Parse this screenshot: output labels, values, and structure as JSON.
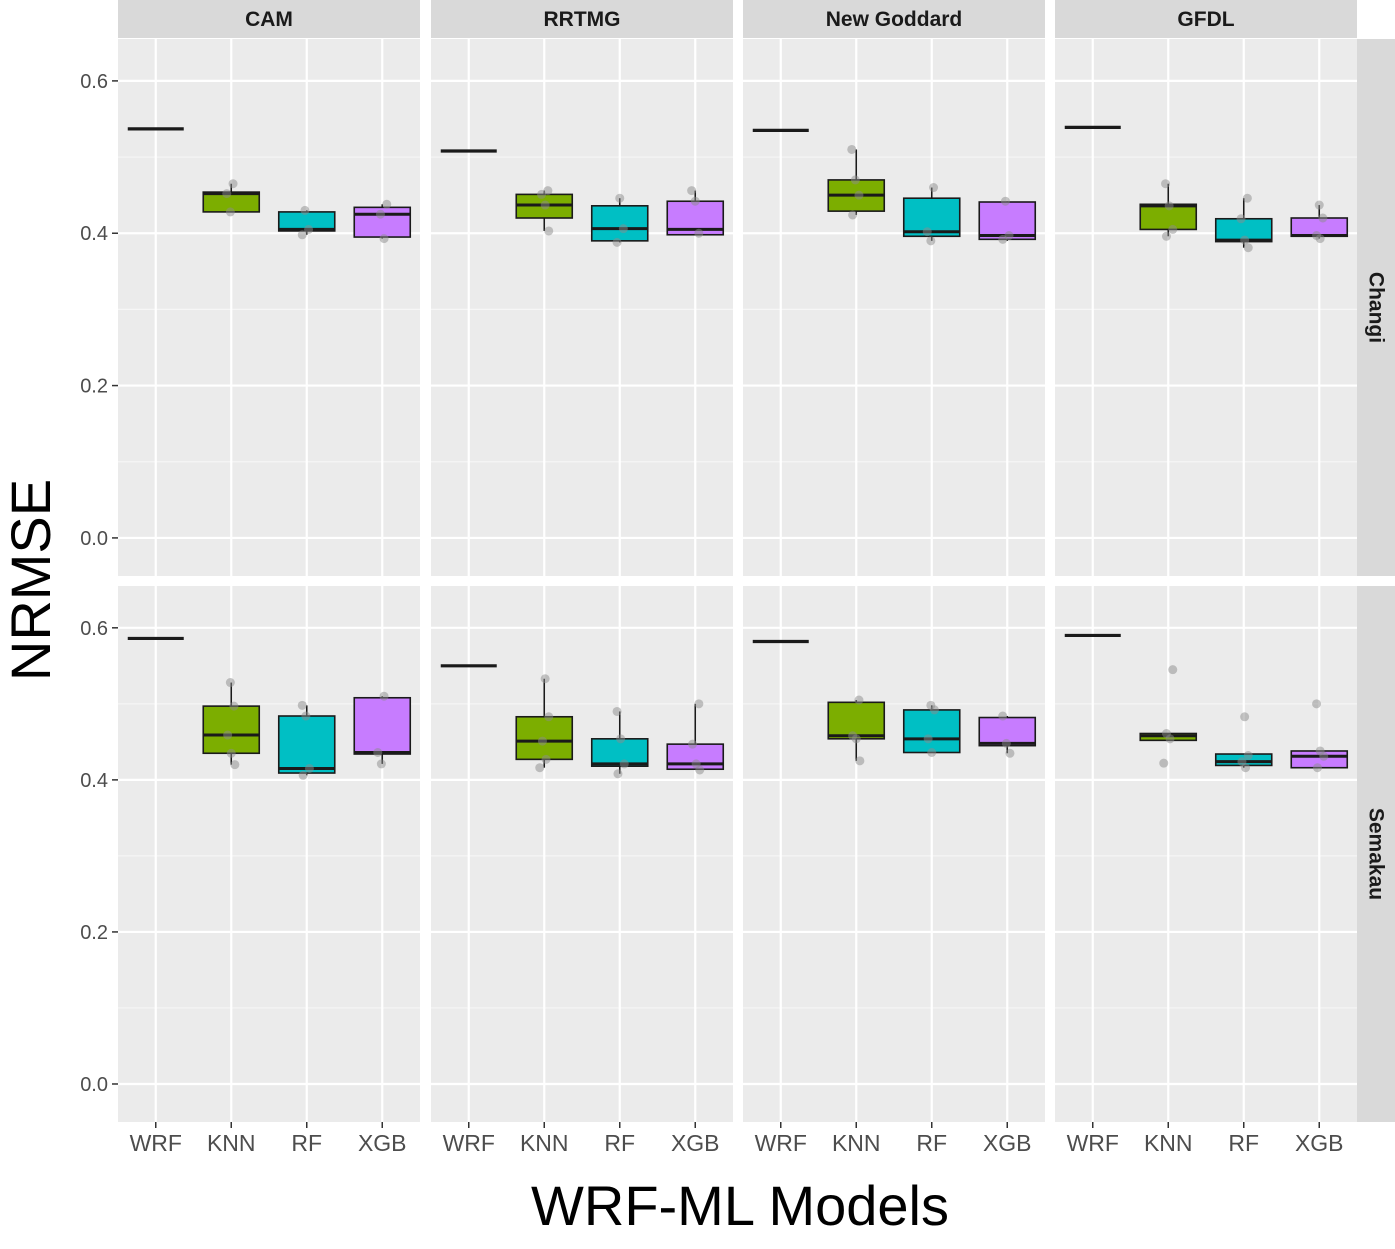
{
  "chart_data": {
    "type": "box",
    "xlabel": "WRF-ML Models",
    "ylabel": "NRMSE",
    "ylim": [
      -0.05,
      0.655
    ],
    "yticks": [
      0.0,
      0.2,
      0.4,
      0.6
    ],
    "ytick_labels": [
      "0.0",
      "0.2",
      "0.4",
      "0.6"
    ],
    "categories": [
      "WRF",
      "KNN",
      "RF",
      "XGB"
    ],
    "colors": {
      "WRF": "#333333",
      "KNN": "#7CAE00",
      "RF": "#00BFC4",
      "XGB": "#C77CFF"
    },
    "columns": [
      "CAM",
      "RRTMG",
      "New Goddard",
      "GFDL"
    ],
    "rows": [
      "Changi",
      "Semakau"
    ],
    "grid": true,
    "legend": "none",
    "panels": [
      {
        "row": "Changi",
        "column": "CAM",
        "boxes": [
          {
            "category": "WRF",
            "q1": 0.537,
            "median": 0.537,
            "q3": 0.537,
            "low": 0.537,
            "high": 0.537,
            "points": [
              0.537
            ]
          },
          {
            "category": "KNN",
            "q1": 0.428,
            "median": 0.452,
            "q3": 0.454,
            "low": 0.428,
            "high": 0.465,
            "points": [
              0.465,
              0.452,
              0.428
            ]
          },
          {
            "category": "RF",
            "q1": 0.403,
            "median": 0.405,
            "q3": 0.428,
            "low": 0.398,
            "high": 0.43,
            "points": [
              0.43,
              0.405,
              0.398
            ]
          },
          {
            "category": "XGB",
            "q1": 0.395,
            "median": 0.425,
            "q3": 0.434,
            "low": 0.393,
            "high": 0.438,
            "points": [
              0.438,
              0.425,
              0.393
            ]
          }
        ]
      },
      {
        "row": "Changi",
        "column": "RRTMG",
        "boxes": [
          {
            "category": "WRF",
            "q1": 0.508,
            "median": 0.508,
            "q3": 0.508,
            "low": 0.508,
            "high": 0.508,
            "points": [
              0.508
            ]
          },
          {
            "category": "KNN",
            "q1": 0.42,
            "median": 0.437,
            "q3": 0.451,
            "low": 0.403,
            "high": 0.456,
            "points": [
              0.456,
              0.451,
              0.437,
              0.403
            ]
          },
          {
            "category": "RF",
            "q1": 0.39,
            "median": 0.406,
            "q3": 0.436,
            "low": 0.388,
            "high": 0.446,
            "points": [
              0.446,
              0.406,
              0.388
            ]
          },
          {
            "category": "XGB",
            "q1": 0.398,
            "median": 0.405,
            "q3": 0.442,
            "low": 0.398,
            "high": 0.456,
            "points": [
              0.456,
              0.442,
              0.4
            ]
          }
        ]
      },
      {
        "row": "Changi",
        "column": "New Goddard",
        "boxes": [
          {
            "category": "WRF",
            "q1": 0.535,
            "median": 0.535,
            "q3": 0.535,
            "low": 0.535,
            "high": 0.535,
            "points": [
              0.535
            ]
          },
          {
            "category": "KNN",
            "q1": 0.429,
            "median": 0.45,
            "q3": 0.47,
            "low": 0.424,
            "high": 0.51,
            "points": [
              0.51,
              0.47,
              0.45,
              0.424
            ]
          },
          {
            "category": "RF",
            "q1": 0.396,
            "median": 0.402,
            "q3": 0.446,
            "low": 0.39,
            "high": 0.46,
            "points": [
              0.46,
              0.402,
              0.39
            ]
          },
          {
            "category": "XGB",
            "q1": 0.392,
            "median": 0.397,
            "q3": 0.441,
            "low": 0.39,
            "high": 0.442,
            "points": [
              0.442,
              0.397,
              0.392
            ]
          }
        ]
      },
      {
        "row": "Changi",
        "column": "GFDL",
        "boxes": [
          {
            "category": "WRF",
            "q1": 0.539,
            "median": 0.539,
            "q3": 0.539,
            "low": 0.539,
            "high": 0.539,
            "points": [
              0.539
            ]
          },
          {
            "category": "KNN",
            "q1": 0.405,
            "median": 0.436,
            "q3": 0.438,
            "low": 0.396,
            "high": 0.465,
            "points": [
              0.465,
              0.436,
              0.405,
              0.396
            ]
          },
          {
            "category": "RF",
            "q1": 0.389,
            "median": 0.391,
            "q3": 0.419,
            "low": 0.381,
            "high": 0.446,
            "points": [
              0.446,
              0.419,
              0.391,
              0.381
            ]
          },
          {
            "category": "XGB",
            "q1": 0.396,
            "median": 0.397,
            "q3": 0.42,
            "low": 0.393,
            "high": 0.437,
            "points": [
              0.437,
              0.42,
              0.397,
              0.393
            ]
          }
        ]
      },
      {
        "row": "Semakau",
        "column": "CAM",
        "boxes": [
          {
            "category": "WRF",
            "q1": 0.586,
            "median": 0.586,
            "q3": 0.586,
            "low": 0.586,
            "high": 0.586,
            "points": [
              0.586
            ]
          },
          {
            "category": "KNN",
            "q1": 0.435,
            "median": 0.459,
            "q3": 0.497,
            "low": 0.42,
            "high": 0.528,
            "points": [
              0.528,
              0.497,
              0.459,
              0.435,
              0.42
            ]
          },
          {
            "category": "RF",
            "q1": 0.409,
            "median": 0.415,
            "q3": 0.484,
            "low": 0.406,
            "high": 0.498,
            "points": [
              0.498,
              0.484,
              0.415,
              0.406
            ]
          },
          {
            "category": "XGB",
            "q1": 0.434,
            "median": 0.436,
            "q3": 0.508,
            "low": 0.421,
            "high": 0.51,
            "points": [
              0.51,
              0.436,
              0.421
            ]
          }
        ]
      },
      {
        "row": "Semakau",
        "column": "RRTMG",
        "boxes": [
          {
            "category": "WRF",
            "q1": 0.55,
            "median": 0.55,
            "q3": 0.55,
            "low": 0.55,
            "high": 0.55,
            "points": [
              0.55
            ]
          },
          {
            "category": "KNN",
            "q1": 0.427,
            "median": 0.451,
            "q3": 0.483,
            "low": 0.416,
            "high": 0.533,
            "points": [
              0.533,
              0.483,
              0.451,
              0.427,
              0.416
            ]
          },
          {
            "category": "RF",
            "q1": 0.418,
            "median": 0.421,
            "q3": 0.454,
            "low": 0.408,
            "high": 0.49,
            "points": [
              0.49,
              0.454,
              0.421,
              0.408
            ]
          },
          {
            "category": "XGB",
            "q1": 0.414,
            "median": 0.421,
            "q3": 0.447,
            "low": 0.413,
            "high": 0.5,
            "points": [
              0.5,
              0.447,
              0.421,
              0.413
            ]
          }
        ]
      },
      {
        "row": "Semakau",
        "column": "New Goddard",
        "boxes": [
          {
            "category": "WRF",
            "q1": 0.582,
            "median": 0.582,
            "q3": 0.582,
            "low": 0.582,
            "high": 0.582,
            "points": [
              0.582
            ]
          },
          {
            "category": "KNN",
            "q1": 0.454,
            "median": 0.458,
            "q3": 0.502,
            "low": 0.425,
            "high": 0.505,
            "points": [
              0.505,
              0.458,
              0.454,
              0.425
            ]
          },
          {
            "category": "RF",
            "q1": 0.436,
            "median": 0.454,
            "q3": 0.492,
            "low": 0.436,
            "high": 0.498,
            "points": [
              0.498,
              0.492,
              0.454,
              0.436
            ]
          },
          {
            "category": "XGB",
            "q1": 0.445,
            "median": 0.448,
            "q3": 0.482,
            "low": 0.435,
            "high": 0.484,
            "points": [
              0.484,
              0.448,
              0.435
            ]
          }
        ]
      },
      {
        "row": "Semakau",
        "column": "GFDL",
        "boxes": [
          {
            "category": "WRF",
            "q1": 0.59,
            "median": 0.59,
            "q3": 0.59,
            "low": 0.59,
            "high": 0.59,
            "points": [
              0.59
            ]
          },
          {
            "category": "KNN",
            "q1": 0.452,
            "median": 0.458,
            "q3": 0.461,
            "low": 0.452,
            "high": 0.461,
            "points": [
              0.545,
              0.461,
              0.454,
              0.422
            ]
          },
          {
            "category": "RF",
            "q1": 0.419,
            "median": 0.424,
            "q3": 0.434,
            "low": 0.416,
            "high": 0.434,
            "points": [
              0.483,
              0.432,
              0.424,
              0.416
            ]
          },
          {
            "category": "XGB",
            "q1": 0.416,
            "median": 0.431,
            "q3": 0.438,
            "low": 0.416,
            "high": 0.438,
            "points": [
              0.5,
              0.438,
              0.431,
              0.416
            ]
          }
        ]
      }
    ]
  }
}
